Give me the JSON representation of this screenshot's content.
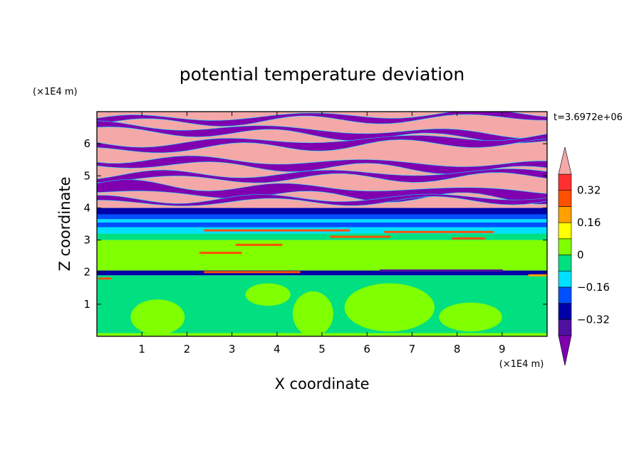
{
  "chart_data": {
    "type": "heatmap",
    "title": "potential temperature deviation",
    "xlabel": "X coordinate",
    "ylabel": "Z coordinate",
    "x_unit": "(×1E4 m)",
    "y_unit": "(×1E4 m)",
    "time_label": "t=3.6972e+06",
    "xlim": [
      0,
      10
    ],
    "ylim": [
      0,
      7
    ],
    "x_ticks": [
      1,
      2,
      3,
      4,
      5,
      6,
      7,
      8,
      9
    ],
    "y_ticks": [
      1,
      2,
      3,
      4,
      5,
      6
    ],
    "colorbar": {
      "levels": [
        -0.4,
        -0.32,
        -0.24,
        -0.16,
        -0.08,
        0,
        0.08,
        0.16,
        0.24,
        0.32,
        0.4
      ],
      "tick_labels": [
        "0.32",
        "0.16",
        "0",
        "−0.16",
        "−0.32"
      ],
      "tick_values": [
        0.32,
        0.16,
        0,
        -0.16,
        -0.32
      ],
      "colors": [
        "#8000b0",
        "#5010a0",
        "#0000a8",
        "#0050ff",
        "#00e0ff",
        "#00e080",
        "#80ff00",
        "#ffff00",
        "#ffa000",
        "#ff5000",
        "#ff3030",
        "#f4a8a8"
      ],
      "extend": "both"
    },
    "bands": [
      {
        "z0": 0,
        "z1": 0.1,
        "value": 0.03
      },
      {
        "z0": 0.1,
        "z1": 1.9,
        "value": -0.03
      },
      {
        "z0": 1.9,
        "z1": 2.05,
        "value": -0.3
      },
      {
        "z0": 2.05,
        "z1": 3.0,
        "value": 0.03
      },
      {
        "z0": 3.0,
        "z1": 3.2,
        "value": -0.03
      },
      {
        "z0": 3.2,
        "z1": 3.4,
        "value": -0.12
      },
      {
        "z0": 3.4,
        "z1": 3.55,
        "value": -0.2
      },
      {
        "z0": 3.55,
        "z1": 3.65,
        "value": -0.12
      },
      {
        "z0": 3.65,
        "z1": 3.8,
        "value": -0.2
      },
      {
        "z0": 3.8,
        "z1": 4.0,
        "value": -0.3
      },
      {
        "z0": 4.0,
        "z1": 7.0,
        "value": 0.45
      }
    ],
    "upper_layers": [
      {
        "z_left": 6.7,
        "z_right": 6.9,
        "thickness": 0.18,
        "value": -0.45
      },
      {
        "z_left": 6.5,
        "z_right": 6.2,
        "thickness": 0.22,
        "value": -0.45
      },
      {
        "z_left": 5.9,
        "z_right": 6.15,
        "thickness": 0.25,
        "value": -0.45
      },
      {
        "z_left": 5.45,
        "z_right": 5.25,
        "thickness": 0.24,
        "value": -0.45
      },
      {
        "z_left": 4.95,
        "z_right": 5.05,
        "thickness": 0.2,
        "value": -0.45
      },
      {
        "z_left": 4.6,
        "z_right": 4.4,
        "thickness": 0.35,
        "value": -0.45
      },
      {
        "z_left": 4.2,
        "z_right": 4.3,
        "thickness": 0.14,
        "value": -0.45
      }
    ],
    "lower_patches": [
      {
        "x": 1.35,
        "z": 0.6,
        "rx": 0.6,
        "rz": 0.55,
        "value": 0.03
      },
      {
        "x": 4.8,
        "z": 0.7,
        "rx": 0.45,
        "rz": 0.7,
        "value": 0.03
      },
      {
        "x": 6.5,
        "z": 0.9,
        "rx": 1.0,
        "rz": 0.75,
        "value": 0.03
      },
      {
        "x": 8.3,
        "z": 0.6,
        "rx": 0.7,
        "rz": 0.45,
        "value": 0.03
      },
      {
        "x": 3.8,
        "z": 1.3,
        "rx": 0.5,
        "rz": 0.35,
        "value": 0.03
      }
    ],
    "line_features": [
      {
        "x0": 2.4,
        "x1": 4.5,
        "z": 2.0,
        "value": 0.24
      },
      {
        "x0": 6.3,
        "x1": 9.0,
        "z": 2.05,
        "value": -0.35
      },
      {
        "x0": 2.3,
        "x1": 3.2,
        "z": 2.6,
        "value": 0.24
      },
      {
        "x0": 3.1,
        "x1": 4.1,
        "z": 2.85,
        "value": 0.24
      },
      {
        "x0": 5.2,
        "x1": 6.5,
        "z": 3.1,
        "value": 0.24
      },
      {
        "x0": 7.9,
        "x1": 8.6,
        "z": 3.05,
        "value": 0.24
      },
      {
        "x0": 2.4,
        "x1": 5.6,
        "z": 3.3,
        "value": 0.3
      },
      {
        "x0": 6.4,
        "x1": 8.8,
        "z": 3.25,
        "value": 0.24
      },
      {
        "x0": 0.05,
        "x1": 0.3,
        "z": 1.8,
        "value": 0.24
      },
      {
        "x0": 9.6,
        "x1": 10.0,
        "z": 1.9,
        "value": 0.16
      }
    ]
  }
}
